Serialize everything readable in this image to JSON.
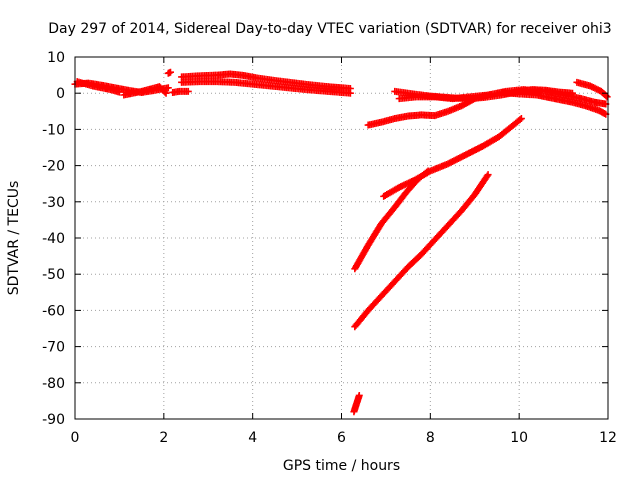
{
  "chart_data": {
    "type": "scatter",
    "title": "Day 297 of 2014, Sidereal Day-to-day VTEC variation (SDTVAR) for receiver ohi3",
    "xlabel": "GPS time / hours",
    "ylabel": "SDTVAR / TECUs",
    "xlim": [
      0,
      12
    ],
    "ylim": [
      -90,
      10
    ],
    "x_ticks": [
      "0",
      "2",
      "4",
      "6",
      "8",
      "10",
      "12"
    ],
    "y_ticks": [
      "10",
      "0",
      "-10",
      "-20",
      "-30",
      "-40",
      "-50",
      "-60",
      "-70",
      "-80",
      "-90"
    ],
    "grid": true,
    "marker": "plus",
    "color": "#ff0000",
    "series": [
      {
        "values": [
          [
            0.0,
            2.5
          ],
          [
            0.3,
            2.8
          ],
          [
            0.6,
            2.2
          ],
          [
            0.9,
            1.5
          ],
          [
            1.2,
            0.8
          ],
          [
            1.5,
            0.2
          ],
          [
            1.8,
            0.8
          ],
          [
            2.1,
            1.5
          ]
        ]
      },
      {
        "values": [
          [
            0.05,
            3.2
          ],
          [
            0.4,
            2.0
          ],
          [
            0.8,
            1.0
          ],
          [
            1.0,
            0.3
          ]
        ]
      },
      {
        "values": [
          [
            1.1,
            -0.5
          ],
          [
            1.5,
            0.5
          ],
          [
            1.9,
            1.8
          ],
          [
            2.05,
            0.0
          ]
        ]
      },
      {
        "values": [
          [
            2.1,
            5.5
          ],
          [
            2.15,
            5.8
          ]
        ]
      },
      {
        "values": [
          [
            2.2,
            0.2
          ],
          [
            2.35,
            0.5
          ],
          [
            2.55,
            0.5
          ]
        ]
      },
      {
        "values": [
          [
            2.4,
            4.5
          ],
          [
            2.8,
            4.8
          ],
          [
            3.2,
            5.0
          ],
          [
            3.5,
            5.3
          ],
          [
            3.8,
            4.9
          ],
          [
            4.1,
            4.2
          ],
          [
            4.5,
            3.5
          ],
          [
            4.9,
            2.9
          ],
          [
            5.3,
            2.3
          ],
          [
            5.7,
            1.8
          ],
          [
            6.0,
            1.5
          ],
          [
            6.2,
            1.3
          ]
        ]
      },
      {
        "values": [
          [
            2.4,
            3.0
          ],
          [
            2.8,
            3.2
          ],
          [
            3.2,
            3.2
          ],
          [
            3.6,
            3.0
          ],
          [
            4.0,
            2.5
          ],
          [
            4.4,
            2.0
          ],
          [
            4.8,
            1.5
          ],
          [
            5.2,
            1.0
          ],
          [
            5.6,
            0.6
          ],
          [
            6.0,
            0.2
          ],
          [
            6.2,
            0.0
          ]
        ]
      },
      {
        "values": [
          [
            6.28,
            -88.0
          ],
          [
            6.32,
            -86.5
          ],
          [
            6.36,
            -85.0
          ],
          [
            6.4,
            -83.5
          ]
        ]
      },
      {
        "values": [
          [
            6.3,
            -48.5
          ],
          [
            6.6,
            -42.0
          ],
          [
            6.9,
            -36.0
          ],
          [
            7.2,
            -31.5
          ],
          [
            7.45,
            -27.5
          ],
          [
            7.7,
            -24.0
          ],
          [
            7.95,
            -21.5
          ]
        ]
      },
      {
        "values": [
          [
            6.3,
            -64.5
          ],
          [
            6.6,
            -60.0
          ],
          [
            6.9,
            -56.0
          ],
          [
            7.2,
            -52.0
          ],
          [
            7.5,
            -48.0
          ],
          [
            7.8,
            -44.5
          ],
          [
            8.1,
            -40.5
          ],
          [
            8.4,
            -36.5
          ],
          [
            8.7,
            -32.5
          ],
          [
            9.0,
            -28.0
          ],
          [
            9.3,
            -22.5
          ]
        ]
      },
      {
        "values": [
          [
            6.95,
            -28.5
          ],
          [
            7.3,
            -26.0
          ],
          [
            7.65,
            -24.0
          ],
          [
            8.0,
            -21.5
          ],
          [
            8.4,
            -19.5
          ],
          [
            8.8,
            -17.0
          ],
          [
            9.2,
            -14.5
          ],
          [
            9.55,
            -12.0
          ],
          [
            9.8,
            -9.5
          ],
          [
            10.05,
            -7.0
          ]
        ]
      },
      {
        "values": [
          [
            6.6,
            -8.8
          ],
          [
            6.9,
            -8.0
          ],
          [
            7.2,
            -7.0
          ],
          [
            7.5,
            -6.3
          ],
          [
            7.8,
            -6.0
          ],
          [
            8.1,
            -6.2
          ],
          [
            8.4,
            -5.0
          ],
          [
            8.7,
            -3.5
          ],
          [
            9.0,
            -1.5
          ],
          [
            9.3,
            -0.5
          ]
        ]
      },
      {
        "values": [
          [
            7.2,
            0.5
          ],
          [
            7.6,
            -0.2
          ],
          [
            8.0,
            -0.8
          ],
          [
            8.4,
            -1.2
          ],
          [
            8.8,
            -1.5
          ],
          [
            9.2,
            -1.2
          ],
          [
            9.6,
            -0.5
          ],
          [
            10.0,
            0.5
          ],
          [
            10.3,
            1.0
          ],
          [
            10.6,
            0.8
          ],
          [
            10.9,
            0.3
          ],
          [
            11.2,
            0.0
          ]
        ]
      },
      {
        "values": [
          [
            7.3,
            -1.5
          ],
          [
            7.7,
            -1.0
          ],
          [
            8.1,
            -1.0
          ],
          [
            8.5,
            -1.5
          ],
          [
            8.9,
            -1.0
          ],
          [
            9.3,
            -0.5
          ],
          [
            9.7,
            0.5
          ],
          [
            10.1,
            1.0
          ],
          [
            10.5,
            0.5
          ]
        ]
      },
      {
        "values": [
          [
            9.6,
            0.2
          ],
          [
            10.0,
            -0.2
          ],
          [
            10.4,
            -0.5
          ],
          [
            10.8,
            -1.5
          ],
          [
            11.2,
            -2.5
          ],
          [
            11.5,
            -3.5
          ],
          [
            11.8,
            -4.8
          ],
          [
            11.95,
            -5.8
          ]
        ]
      },
      {
        "values": [
          [
            10.6,
            0.5
          ],
          [
            11.0,
            -0.5
          ],
          [
            11.4,
            -1.5
          ],
          [
            11.7,
            -2.5
          ],
          [
            11.95,
            -3.0
          ]
        ]
      },
      {
        "values": [
          [
            11.3,
            3.0
          ],
          [
            11.6,
            2.0
          ],
          [
            11.85,
            0.5
          ],
          [
            11.98,
            -1.0
          ]
        ]
      }
    ]
  }
}
